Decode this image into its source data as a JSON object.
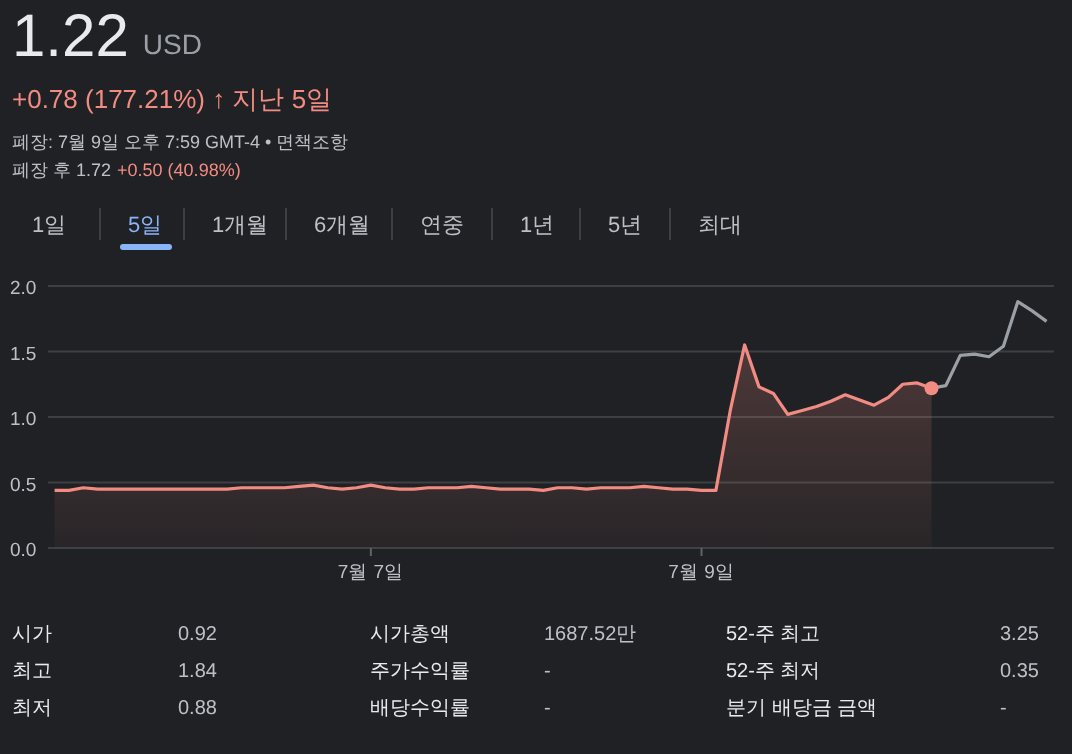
{
  "chart_data": {
    "type": "line",
    "title": "1.22",
    "subtitle": "USD",
    "annotations": [
      "+0.78 (177.21%) ↑ 지난 5일",
      "폐장: 7월 9일 오후 7:59 GMT-4 • 면책조항",
      "폐장 후 1.72",
      "+0.50 (40.98%)",
      "1일",
      "5일",
      "1개월",
      "6개월",
      "연중",
      "1년",
      "5년",
      "최대",
      "시가",
      "0.92",
      "시가총액",
      "1687.52만",
      "52-주 최고",
      "3.25",
      "최고",
      "1.84",
      "주가수익률",
      "-",
      "52-주 최저",
      "0.35",
      "최저",
      "0.88",
      "배당수익률",
      "-",
      "분기 배당금 금액",
      "-"
    ],
    "categories": [
      null,
      null,
      null,
      null,
      null,
      null,
      null,
      null,
      null,
      null,
      null,
      null,
      null,
      null,
      null,
      null,
      null,
      null,
      null,
      null,
      null,
      null,
      "7월 7일",
      null,
      null,
      null,
      null,
      null,
      null,
      null,
      null,
      null,
      null,
      null,
      null,
      null,
      null,
      null,
      null,
      null,
      null,
      null,
      null,
      null,
      null,
      "7월 9일",
      null,
      null,
      null,
      null,
      null,
      null,
      null,
      null,
      null,
      null,
      null,
      null,
      null,
      null,
      null,
      null,
      null,
      null,
      null,
      null,
      null,
      null,
      null,
      null
    ],
    "ylim": [
      0,
      2
    ],
    "yticks": [
      {
        "value": 0,
        "label": "0.0"
      },
      0.5,
      {
        "value": 1,
        "label": "1.0"
      },
      1.5,
      {
        "value": 2,
        "label": "2.0"
      }
    ],
    "grid": "y",
    "series": [
      {
        "type": "area",
        "color": "#f28b82",
        "values": [
          0.44,
          0.44,
          0.46,
          0.45,
          0.45,
          0.45,
          0.45,
          0.45,
          0.45,
          0.45,
          0.45,
          0.45,
          0.45,
          0.46,
          0.46,
          0.46,
          0.46,
          0.47,
          0.48,
          0.46,
          0.45,
          0.46,
          0.48,
          0.46,
          0.45,
          0.45,
          0.46,
          0.46,
          0.46,
          0.47,
          0.46,
          0.45,
          0.45,
          0.45,
          0.44,
          0.46,
          0.46,
          0.45,
          0.46,
          0.46,
          0.46,
          0.47,
          0.46,
          0.45,
          0.45,
          0.44,
          0.44,
          1.05,
          1.55,
          1.23,
          1.18,
          1.02,
          1.05,
          1.08,
          1.12,
          1.17,
          1.13,
          1.09,
          1.15,
          1.25,
          1.26,
          1.22,
          null,
          null,
          null,
          null,
          null,
          null,
          null,
          null
        ]
      },
      {
        "type": "line",
        "color": "#9aa0a6",
        "values": [
          null,
          null,
          null,
          null,
          null,
          null,
          null,
          null,
          null,
          null,
          null,
          null,
          null,
          null,
          null,
          null,
          null,
          null,
          null,
          null,
          null,
          null,
          null,
          null,
          null,
          null,
          null,
          null,
          null,
          null,
          null,
          null,
          null,
          null,
          null,
          null,
          null,
          null,
          null,
          null,
          null,
          null,
          null,
          null,
          null,
          null,
          null,
          null,
          null,
          null,
          null,
          null,
          null,
          null,
          null,
          null,
          null,
          null,
          null,
          null,
          null,
          1.22,
          1.24,
          1.47,
          1.48,
          1.46,
          1.54,
          1.88,
          1.81,
          1.73
        ]
      },
      {
        "type": "scatter",
        "color": "#f28b82",
        "values": [
          null,
          null,
          null,
          null,
          null,
          null,
          null,
          null,
          null,
          null,
          null,
          null,
          null,
          null,
          null,
          null,
          null,
          null,
          null,
          null,
          null,
          null,
          null,
          null,
          null,
          null,
          null,
          null,
          null,
          null,
          null,
          null,
          null,
          null,
          null,
          null,
          null,
          null,
          null,
          null,
          null,
          null,
          null,
          null,
          null,
          null,
          null,
          null,
          null,
          null,
          null,
          null,
          null,
          null,
          null,
          null,
          null,
          null,
          null,
          null,
          null,
          1.22,
          null,
          null,
          null,
          null,
          null,
          null,
          null,
          null
        ]
      }
    ]
  }
}
